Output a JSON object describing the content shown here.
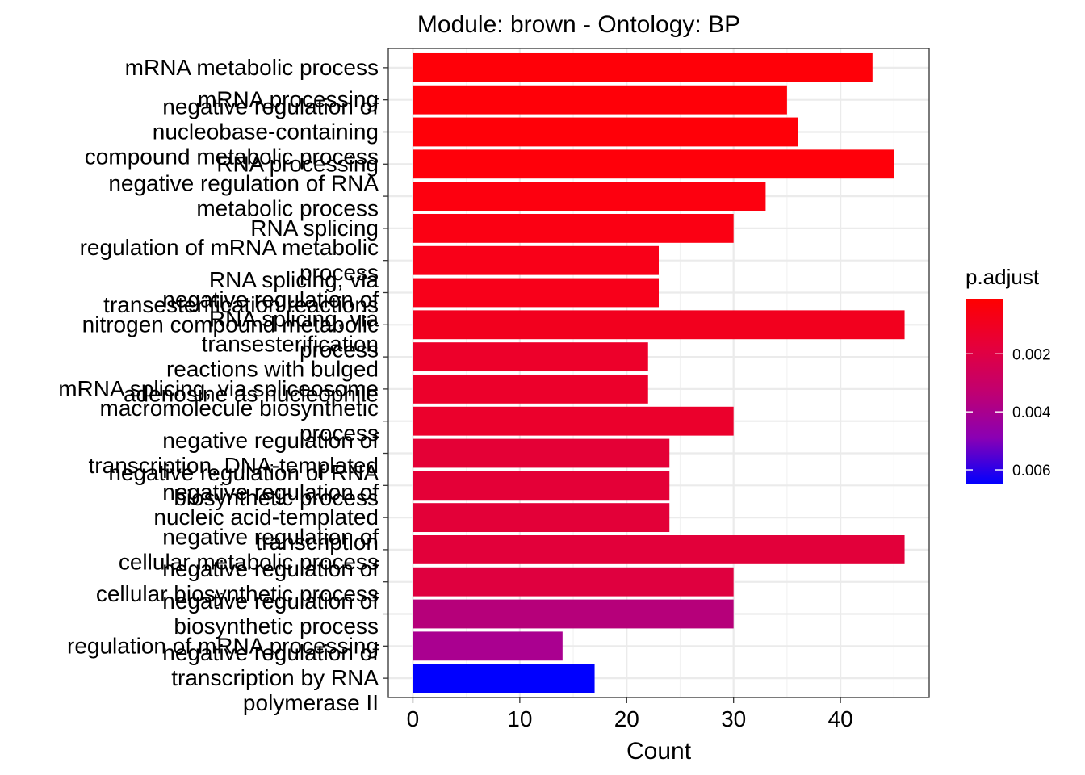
{
  "chart_data": {
    "type": "bar",
    "orientation": "horizontal",
    "title": "Module: brown - Ontology: BP",
    "xlabel": "Count",
    "ylabel": "",
    "xlim": [
      -2.3,
      48.3
    ],
    "xticks": [
      0,
      10,
      20,
      30,
      40
    ],
    "grid": true,
    "categories": [
      "mRNA metabolic process",
      "mRNA processing",
      "negative regulation of nucleobase-containing compound metabolic process",
      "RNA processing",
      "negative regulation of RNA metabolic process",
      "RNA splicing",
      "regulation of mRNA metabolic process",
      "RNA splicing, via transesterification reactions",
      "negative regulation of nitrogen compound metabolic process",
      "RNA splicing, via transesterification reactions with bulged adenosine as nucleophile",
      "mRNA splicing, via spliceosome",
      "macromolecule biosynthetic process",
      "negative regulation of transcription, DNA-templated",
      "negative regulation of RNA biosynthetic process",
      "negative regulation of nucleic acid-templated transcription",
      "negative regulation of cellular metabolic process",
      "negative regulation of cellular biosynthetic process",
      "negative regulation of biosynthetic process",
      "regulation of mRNA processing",
      "negative regulation of transcription by RNA polymerase II"
    ],
    "label_lines": [
      [
        "mRNA metabolic process"
      ],
      [
        "mRNA processing"
      ],
      [
        "negative regulation of",
        "nucleobase-containing",
        "compound metabolic process"
      ],
      [
        "RNA processing"
      ],
      [
        "negative regulation of RNA",
        "metabolic process"
      ],
      [
        "RNA splicing"
      ],
      [
        "regulation of mRNA metabolic",
        "process"
      ],
      [
        "RNA splicing, via",
        "transesterification reactions"
      ],
      [
        "negative regulation of",
        "nitrogen compound metabolic",
        "process"
      ],
      [
        "RNA splicing, via",
        "transesterification",
        "reactions with bulged",
        "adenosine as nucleophile"
      ],
      [
        "mRNA splicing, via spliceosome"
      ],
      [
        "macromolecule biosynthetic",
        "process"
      ],
      [
        "negative regulation of",
        "transcription, DNA-templated"
      ],
      [
        "negative regulation of RNA",
        "biosynthetic process"
      ],
      [
        "negative regulation of",
        "nucleic acid-templated",
        "transcription"
      ],
      [
        "negative regulation of",
        "cellular metabolic process"
      ],
      [
        "negative regulation of",
        "cellular biosynthetic process"
      ],
      [
        "negative regulation of",
        "biosynthetic process"
      ],
      [
        "regulation of mRNA processing"
      ],
      [
        "negative regulation of",
        "transcription by RNA",
        "polymerase II"
      ]
    ],
    "values": [
      43,
      35,
      36,
      45,
      33,
      30,
      23,
      23,
      46,
      22,
      22,
      30,
      24,
      24,
      24,
      46,
      30,
      30,
      14,
      17
    ],
    "bar_colors": [
      "#ff0008",
      "#ff0008",
      "#ff0008",
      "#ff000a",
      "#fd000f",
      "#fb0013",
      "#f90018",
      "#f8001a",
      "#f2001e",
      "#ed002a",
      "#ec002b",
      "#eb002c",
      "#e40036",
      "#e40037",
      "#e30038",
      "#e2003a",
      "#df003f",
      "#b6007a",
      "#aa0090",
      "#0000ff"
    ],
    "legend": {
      "title": "p.adjust",
      "placement": "right",
      "gradient_colors": [
        "#ff0000",
        "#e6003a",
        "#c10070",
        "#8a00b4",
        "#0000ff"
      ],
      "gradient_range": [
        0.0001,
        0.0065
      ],
      "ticks": [
        {
          "value": 0.002,
          "label": "0.002"
        },
        {
          "value": 0.004,
          "label": "0.004"
        },
        {
          "value": 0.006,
          "label": "0.006"
        }
      ]
    }
  }
}
